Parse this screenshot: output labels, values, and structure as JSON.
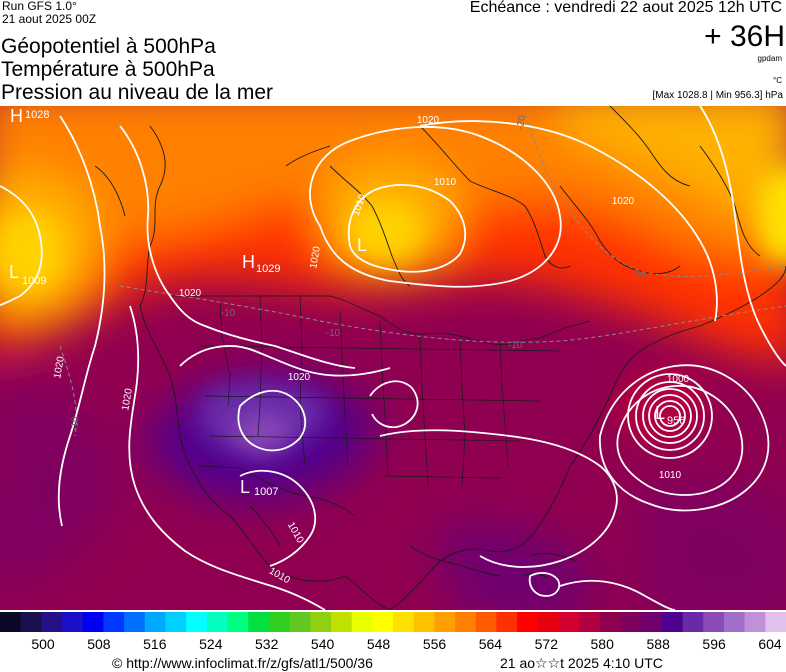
{
  "header": {
    "run_label": "Run GFS 1.0°",
    "run_date": "21 aout 2025 00Z",
    "titles": [
      "Géopotentiel à 500hPa",
      "Température à 500hPa",
      "Pression au niveau de la mer"
    ],
    "valid_time": "Echéance : vendredi 22 aout 2025 12h UTC",
    "lead_time": "+ 36H",
    "unit_geopotential": "gpdam",
    "unit_temperature": "°C",
    "max_min": "[Max 1028.8 | Min 956.3] hPa"
  },
  "map": {
    "pressure_centers": [
      {
        "type": "H",
        "value": "1028"
      },
      {
        "type": "L",
        "value": "1009"
      },
      {
        "type": "H",
        "value": "1029"
      },
      {
        "type": "L",
        "value": ""
      },
      {
        "type": "L",
        "value": "1007"
      },
      {
        "type": "L",
        "value": "956"
      }
    ],
    "isobar_labels": [
      "1020",
      "1010",
      "1020",
      "1020",
      "1020",
      "1020",
      "1020",
      "1020",
      "1010",
      "1010",
      "1010",
      "1000",
      "1010"
    ],
    "temperature_labels": [
      "-20",
      "-20",
      "-10",
      "-10",
      "-10",
      "-10"
    ],
    "colors": {
      "land_border": "#1a1a1a",
      "isobar": "#ffffff",
      "isotherm": "#8a8a8a"
    }
  },
  "legend": {
    "ticks": [
      "500",
      "508",
      "516",
      "524",
      "532",
      "540",
      "548",
      "556",
      "564",
      "572",
      "580",
      "588",
      "596",
      "604"
    ],
    "colors": [
      "#0a0a28",
      "#1a1050",
      "#25108a",
      "#1a10c8",
      "#0000f0",
      "#0038ff",
      "#0070ff",
      "#00a8ff",
      "#00d0ff",
      "#00ffff",
      "#00ffc0",
      "#00ff80",
      "#00e040",
      "#30d020",
      "#60c820",
      "#90d010",
      "#c0e000",
      "#e8ff00",
      "#ffff00",
      "#ffe000",
      "#ffc000",
      "#ffa000",
      "#ff8000",
      "#ff5a00",
      "#ff3000",
      "#ff0000",
      "#e80010",
      "#d00030",
      "#b00040",
      "#900050",
      "#800060",
      "#700070",
      "#500090",
      "#6a2aa8",
      "#8a4ab8",
      "#a070c8",
      "#c090d8",
      "#e0c0ec"
    ]
  },
  "footer": {
    "credit": "© http://www.infoclimat.fr/z/gfs/atl1/500/36",
    "generated": "21 ao☆☆t 2025  4:10 UTC"
  }
}
